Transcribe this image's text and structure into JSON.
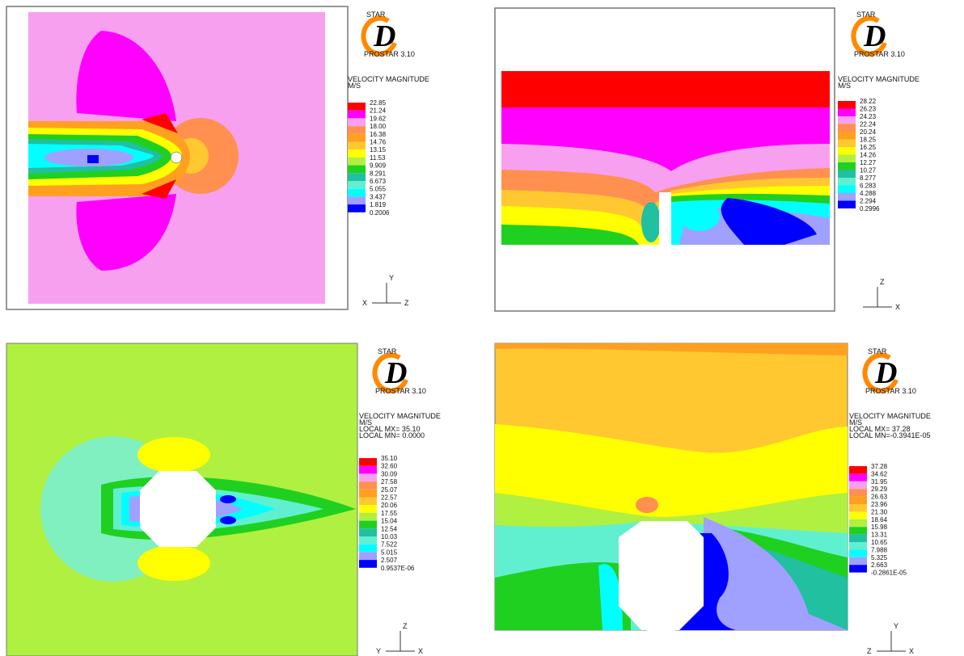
{
  "legend_colors": [
    "#ff0000",
    "#ff00ff",
    "#f8a0f0",
    "#ff9050",
    "#ffa020",
    "#ffc830",
    "#ffff00",
    "#b0f040",
    "#20d020",
    "#20c0a0",
    "#60f0d0",
    "#00ffff",
    "#a0a0ff",
    "#0000ff"
  ],
  "panels": [
    {
      "logo": {
        "star": "STAR",
        "mark": "D",
        "version": "PROSTAR 3.10"
      },
      "legend_title": "VELOCITY MAGNITUDE",
      "unit": "M/S",
      "levels": [
        "22.85",
        "21.24",
        "19.62",
        "18.00",
        "16.38",
        "14.76",
        "13.15",
        "11.53",
        "9.909",
        "8.291",
        "6.673",
        "5.055",
        "3.437",
        "1.819",
        "0.2006"
      ],
      "triad": {
        "up": "Y",
        "left": "X",
        "right": "Z"
      }
    },
    {
      "logo": {
        "star": "STAR",
        "mark": "D",
        "version": "PROSTAR 3.10"
      },
      "legend_title": "VELOCITY MAGNITUDE",
      "unit": "M/S",
      "levels": [
        "28.22",
        "26.23",
        "24.23",
        "22.24",
        "20.24",
        "18.25",
        "16.25",
        "14.26",
        "12.27",
        "10.27",
        "8.277",
        "6.283",
        "4.288",
        "2.294",
        "0.2996"
      ],
      "triad": {
        "up": "Z",
        "right": "X"
      }
    },
    {
      "logo": {
        "star": "STAR",
        "mark": "D",
        "version": "PROSTAR 3.10"
      },
      "legend_title": "VELOCITY MAGNITUDE",
      "unit": "M/S",
      "local_max": "LOCAL MX=  35.10",
      "local_min": "LOCAL MN= 0.0000",
      "levels": [
        "35.10",
        "32.60",
        "30.09",
        "27.58",
        "25.07",
        "22.57",
        "20.06",
        "17.55",
        "15.04",
        "12.54",
        "10.03",
        "7.522",
        "5.015",
        "2.507",
        "0.9537E-06"
      ],
      "triad": {
        "up": "Z",
        "left": "Y",
        "right": "X"
      }
    },
    {
      "logo": {
        "star": "STAR",
        "mark": "D",
        "version": "PROSTAR 3.10"
      },
      "legend_title": "VELOCITY MAGNITUDE",
      "unit": "M/S",
      "local_max": "LOCAL MX=  37.28",
      "local_min": "LOCAL MN=-0.3941E-05",
      "levels": [
        "37.28",
        "34.62",
        "31.95",
        "29.29",
        "26.63",
        "23.96",
        "21.30",
        "18.64",
        "15.98",
        "13.31",
        "10.65",
        "7.988",
        "5.325",
        "2.663",
        "-0.2861E-05"
      ],
      "triad": {
        "up": "Y",
        "left": "Z",
        "right": "X"
      }
    }
  ]
}
